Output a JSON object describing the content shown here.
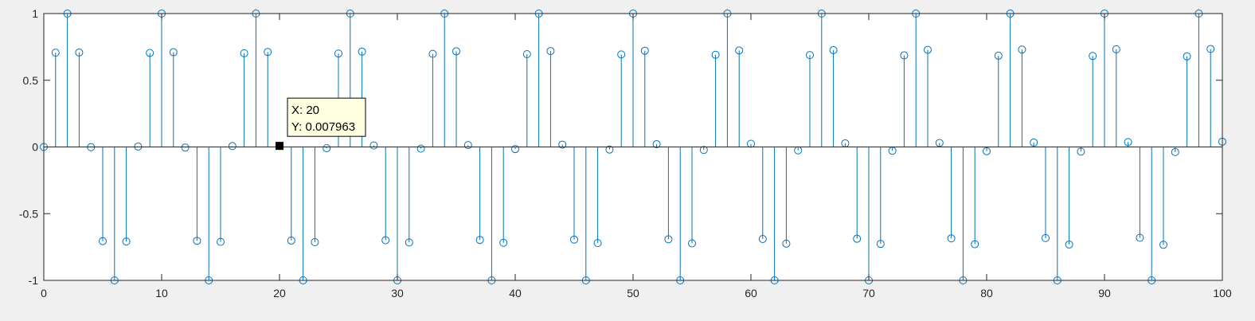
{
  "chart_data": {
    "type": "stem",
    "title": "",
    "xlabel": "",
    "ylabel": "",
    "xlim": [
      0,
      100
    ],
    "ylim": [
      -1,
      1
    ],
    "xticks": [
      0,
      10,
      20,
      30,
      40,
      50,
      60,
      70,
      80,
      90,
      100
    ],
    "xtick_labels": [
      "0",
      "10",
      "20",
      "30",
      "40",
      "50",
      "60",
      "70",
      "80",
      "90",
      "100"
    ],
    "yticks": [
      -1,
      -0.5,
      0,
      0.5,
      1
    ],
    "ytick_labels": [
      "-1",
      "-0.5",
      "0",
      "0.5",
      "1"
    ],
    "grid": false,
    "stem_color": "#0072bd",
    "x": [
      0,
      1,
      2,
      3,
      4,
      5,
      6,
      7,
      8,
      9,
      10,
      11,
      12,
      13,
      14,
      15,
      16,
      17,
      18,
      19,
      20,
      21,
      22,
      23,
      24,
      25,
      26,
      27,
      28,
      29,
      30,
      31,
      32,
      33,
      34,
      35,
      36,
      37,
      38,
      39,
      40,
      41,
      42,
      43,
      44,
      45,
      46,
      47,
      48,
      49,
      50,
      51,
      52,
      53,
      54,
      55,
      56,
      57,
      58,
      59,
      60,
      61,
      62,
      63,
      64,
      65,
      66,
      67,
      68,
      69,
      70,
      71,
      72,
      73,
      74,
      75,
      76,
      77,
      78,
      79,
      80,
      81,
      82,
      83,
      84,
      85,
      86,
      87,
      88,
      89,
      90,
      91,
      92,
      93,
      94,
      95,
      96,
      97,
      98,
      99,
      100
    ],
    "y": [
      0,
      0.7068,
      1,
      0.7079,
      -0.0016,
      -0.7057,
      -1,
      -0.709,
      0.0032,
      0.7046,
      1,
      0.7101,
      -0.0048,
      -0.7034,
      -1,
      -0.7112,
      0.0064,
      0.7023,
      1,
      0.7123,
      0.008,
      -0.7012,
      -1,
      -0.7134,
      -0.0096,
      0.7001,
      1,
      0.7146,
      0.0112,
      -0.6989,
      -1,
      -0.7157,
      -0.0127,
      0.6978,
      1,
      0.7168,
      0.0143,
      -0.6967,
      -1,
      -0.7179,
      -0.0159,
      0.6955,
      1,
      0.719,
      0.0175,
      -0.6944,
      -1,
      -0.7201,
      -0.0191,
      0.6932,
      1,
      0.7212,
      0.0207,
      -0.6921,
      -1,
      -0.7223,
      -0.0223,
      0.691,
      1,
      0.7234,
      0.0239,
      -0.6898,
      -1,
      -0.7245,
      -0.0255,
      0.6887,
      1,
      0.7256,
      0.0271,
      -0.6875,
      -1,
      -0.7267,
      -0.0287,
      0.6864,
      1,
      0.7278,
      0.0302,
      -0.6852,
      -1,
      -0.7288,
      -0.0318,
      0.6841,
      1,
      0.7299,
      0.0334,
      -0.6829,
      -1,
      -0.731,
      -0.035,
      0.6818,
      1,
      0.7321,
      0.0366,
      -0.6806,
      -1,
      -0.7331,
      -0.0382,
      0.6794,
      1,
      0.7342,
      0.0398
    ],
    "datatip": {
      "x": 20,
      "y": 0.007963,
      "x_text": "X: 20",
      "y_text": "Y: 0.007963"
    }
  }
}
